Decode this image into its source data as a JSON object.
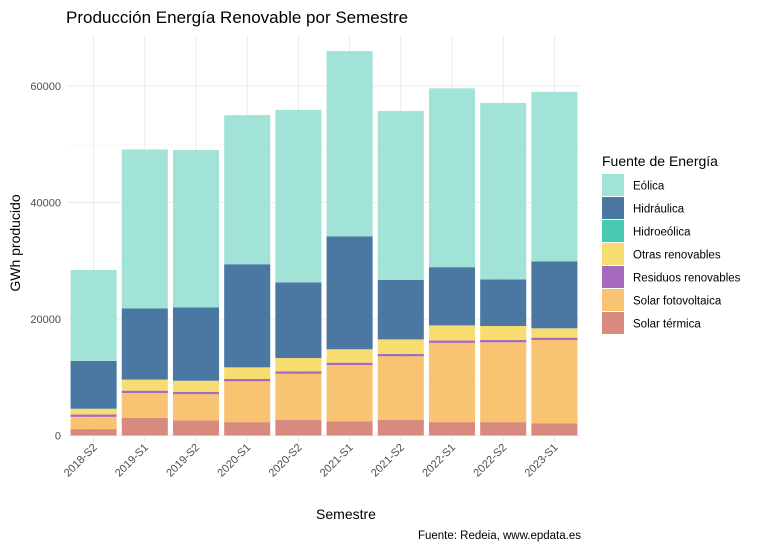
{
  "chart_data": {
    "type": "bar",
    "stacked": true,
    "title": "Producción Energía Renovable por Semestre",
    "xlabel": "Semestre",
    "ylabel": "GWh producido",
    "caption": "Fuente: Redeia, www.epdata.es",
    "legend_title": "Fuente de Energía",
    "legend_position": "right",
    "grid": true,
    "ylim": [
      0,
      68000
    ],
    "yticks": [
      0,
      20000,
      40000,
      60000
    ],
    "categories": [
      "2018-S2",
      "2019-S1",
      "2019-S2",
      "2020-S1",
      "2020-S2",
      "2021-S1",
      "2021-S2",
      "2022-S1",
      "2022-S2",
      "2023-S1"
    ],
    "series": [
      {
        "name": "Solar térmica",
        "color": "#D98A7F",
        "values": [
          1100,
          3000,
          2600,
          2300,
          2700,
          2400,
          2700,
          2300,
          2300,
          2100
        ]
      },
      {
        "name": "Solar fotovoltaica",
        "color": "#F8C471",
        "values": [
          2100,
          4300,
          4500,
          7000,
          7900,
          9700,
          10900,
          13600,
          13700,
          14300
        ]
      },
      {
        "name": "Residuos renovables",
        "color": "#A569BD",
        "values": [
          400,
          400,
          400,
          400,
          400,
          400,
          400,
          400,
          400,
          400
        ]
      },
      {
        "name": "Otras renovables",
        "color": "#F7DC6F",
        "values": [
          1000,
          1900,
          1900,
          2000,
          2300,
          2300,
          2500,
          2600,
          2400,
          1600
        ]
      },
      {
        "name": "Hidroeólica",
        "color": "#48C9B0",
        "values": [
          0,
          0,
          0,
          0,
          0,
          0,
          0,
          0,
          0,
          0
        ]
      },
      {
        "name": "Hidráulica",
        "color": "#4A78A2",
        "values": [
          8200,
          12200,
          12600,
          17700,
          13000,
          19400,
          10200,
          10000,
          8000,
          11500
        ]
      },
      {
        "name": "Eólica",
        "color": "#A2E3D8",
        "values": [
          15600,
          27300,
          27000,
          25600,
          29600,
          31800,
          29000,
          30700,
          30300,
          29100
        ]
      }
    ]
  }
}
